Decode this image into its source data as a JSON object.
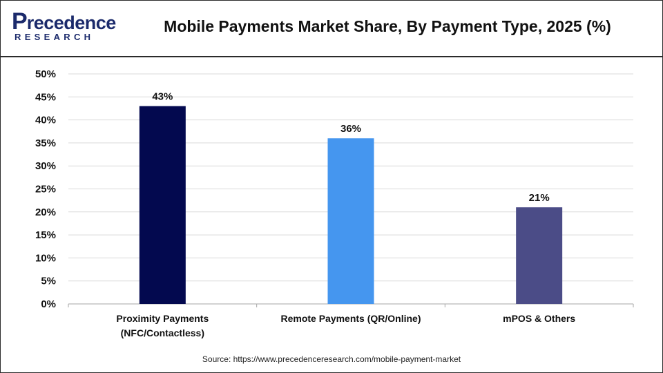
{
  "logo": {
    "top_text": "recedence",
    "p_letter": "P",
    "bottom_text": "RESEARCH"
  },
  "title": "Mobile Payments Market Share, By Payment Type, 2025 (%)",
  "source": "Source: https://www.precedenceresearch.com/mobile-payment-market",
  "chart_data": {
    "type": "bar",
    "title": "Mobile Payments Market Share, By Payment Type, 2025 (%)",
    "categories": [
      [
        "Proximity Payments",
        "(NFC/Contactless)"
      ],
      [
        "Remote Payments (QR/Online)"
      ],
      [
        "mPOS & Others"
      ]
    ],
    "values": [
      43,
      36,
      21
    ],
    "data_labels": [
      "43%",
      "36%",
      "21%"
    ],
    "colors": [
      "#03094f",
      "#4596ef",
      "#4b4c87"
    ],
    "ylim": [
      0,
      50
    ],
    "yticks": [
      0,
      5,
      10,
      15,
      20,
      25,
      30,
      35,
      40,
      45,
      50
    ],
    "ytick_labels": [
      "0%",
      "5%",
      "10%",
      "15%",
      "20%",
      "25%",
      "30%",
      "35%",
      "40%",
      "45%",
      "50%"
    ],
    "grid": true,
    "xlabel": "",
    "ylabel": ""
  }
}
